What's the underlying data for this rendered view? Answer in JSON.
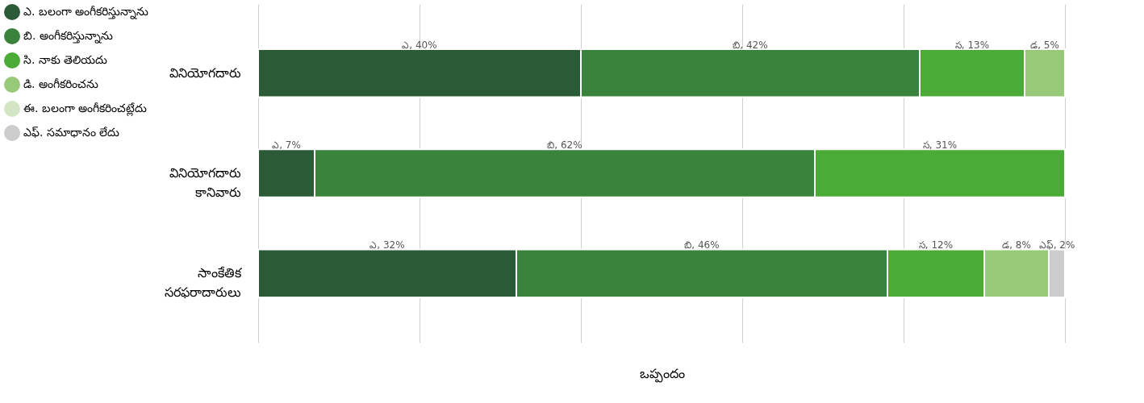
{
  "chart_data": {
    "type": "bar",
    "orientation": "horizontal",
    "stacked": true,
    "categories": [
      "వినియోగదారు",
      "వినియోగదారు కానివారు",
      "సాంకేతిక సరఫరాదారులు"
    ],
    "xlabel": "ఒప్పందం",
    "tick_labels": "y",
    "grid": "x",
    "legend": "left",
    "series": [
      {
        "name": "ఎ. బలంగా అంగీకరిస్తున్నాను",
        "color": "#2a5a36",
        "values": [
          40,
          7,
          32
        ],
        "value_labels": [
          "ఎ, 40%",
          "ఎ, 7%",
          "ఎ, 32%"
        ]
      },
      {
        "name": "బి. అంగీకరిస్తున్నాను",
        "color": "#3a833c",
        "values": [
          42,
          62,
          46
        ],
        "value_labels": [
          "బి, 42%",
          "బి, 62%",
          "బి, 46%"
        ]
      },
      {
        "name": "సి. నాకు తెలియదు",
        "color": "#4aab37",
        "values": [
          13,
          31,
          12
        ],
        "value_labels": [
          "స, 13%",
          "స, 31%",
          "స, 12%"
        ]
      },
      {
        "name": "డి. అంగీకరించను",
        "color": "#98c979",
        "values": [
          5,
          null,
          8
        ],
        "value_labels": [
          "డ, 5%",
          null,
          "డ, 8%"
        ]
      },
      {
        "name": "ఈ. బలంగా అంగీకరించట్లేదు",
        "color": "#d2e6c3",
        "values": [
          null,
          null,
          null
        ],
        "value_labels": [
          null,
          null,
          null
        ]
      },
      {
        "name": "ఎఫ్. సమాధానం లేదు",
        "color": "#cccccc",
        "values": [
          null,
          null,
          2
        ],
        "value_labels": [
          null,
          null,
          "ఎఫ్, 2%"
        ]
      }
    ]
  }
}
